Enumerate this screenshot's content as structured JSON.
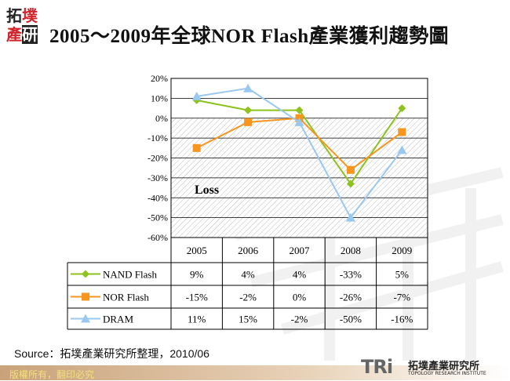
{
  "header": {
    "logo_text": "拓墣產研",
    "title": "2005～2009年全球NOR Flash產業獲利趨勢圖"
  },
  "chart_data": {
    "type": "line",
    "title": "2005～2009年全球NOR Flash產業獲利趨勢圖",
    "categories": [
      "2005",
      "2006",
      "2007",
      "2008",
      "2009"
    ],
    "yticks": [
      "20%",
      "10%",
      "0%",
      "-10%",
      "-20%",
      "-30%",
      "-40%",
      "-50%",
      "-60%"
    ],
    "ylim": [
      -60,
      20
    ],
    "grid": true,
    "annotation": "Loss",
    "legend_placement": "data-table",
    "series": [
      {
        "name": "NAND Flash",
        "values": [
          9,
          4,
          4,
          -33,
          5
        ],
        "labels": [
          "9%",
          "4%",
          "4%",
          "-33%",
          "5%"
        ],
        "color": "#8dc21f",
        "marker": "diamond"
      },
      {
        "name": "NOR Flash",
        "values": [
          -15,
          -2,
          0,
          -26,
          -7
        ],
        "labels": [
          "-15%",
          "-2%",
          "0%",
          "-26%",
          "-7%"
        ],
        "color": "#f7961e",
        "marker": "square"
      },
      {
        "name": "DRAM",
        "values": [
          11,
          15,
          -2,
          -50,
          -16
        ],
        "labels": [
          "11%",
          "15%",
          "-2%",
          "-50%",
          "-16%"
        ],
        "color": "#99c8f0",
        "marker": "triangle"
      }
    ]
  },
  "footer": {
    "source": "Source：拓墣產業研究所整理，2010/06",
    "copyright": "版權所有，翻印必究",
    "brand_logo": "TRi",
    "brand_cn": "拓墣產業研究所",
    "brand_en": "TOPOLOGY RESEARCH INSTITUTE"
  }
}
